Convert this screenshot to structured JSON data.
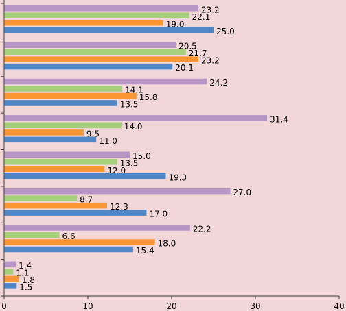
{
  "chart_data": {
    "type": "bar",
    "orientation": "horizontal",
    "xlim": [
      0,
      40
    ],
    "x_ticks": [
      "0",
      "10",
      "20",
      "30",
      "40"
    ],
    "grid": false,
    "legend": "none",
    "categories": [
      "",
      "",
      "",
      "",
      "",
      "",
      "",
      ""
    ],
    "series": [
      {
        "color": "#4f86c6",
        "values": [
          25.0,
          20.1,
          13.5,
          11.0,
          19.3,
          17.0,
          15.4,
          1.5
        ]
      },
      {
        "color": "#f79633",
        "values": [
          19.0,
          23.2,
          15.8,
          9.5,
          12.0,
          12.3,
          18.0,
          1.8
        ]
      },
      {
        "color": "#a6cf7b",
        "values": [
          22.1,
          21.7,
          14.1,
          14.0,
          13.5,
          8.7,
          6.6,
          1.1
        ]
      },
      {
        "color": "#b796c6",
        "values": [
          23.2,
          20.5,
          24.2,
          31.4,
          15.0,
          27.0,
          22.2,
          1.4
        ]
      }
    ],
    "data_labels": [
      [
        "25.0",
        "20.1",
        "13.5",
        "11.0",
        "19.3",
        "17.0",
        "15.4",
        "1.5"
      ],
      [
        "19.0",
        "23.2",
        "15.8",
        "9.5",
        "12.0",
        "12.3",
        "18.0",
        "1.8"
      ],
      [
        "22.1",
        "21.7",
        "14.1",
        "14.0",
        "13.5",
        "8.7",
        "6.6",
        "1.1"
      ],
      [
        "23.2",
        "20.5",
        "24.2",
        "31.4",
        "15.0",
        "27.0",
        "22.2",
        "1.4"
      ]
    ]
  }
}
